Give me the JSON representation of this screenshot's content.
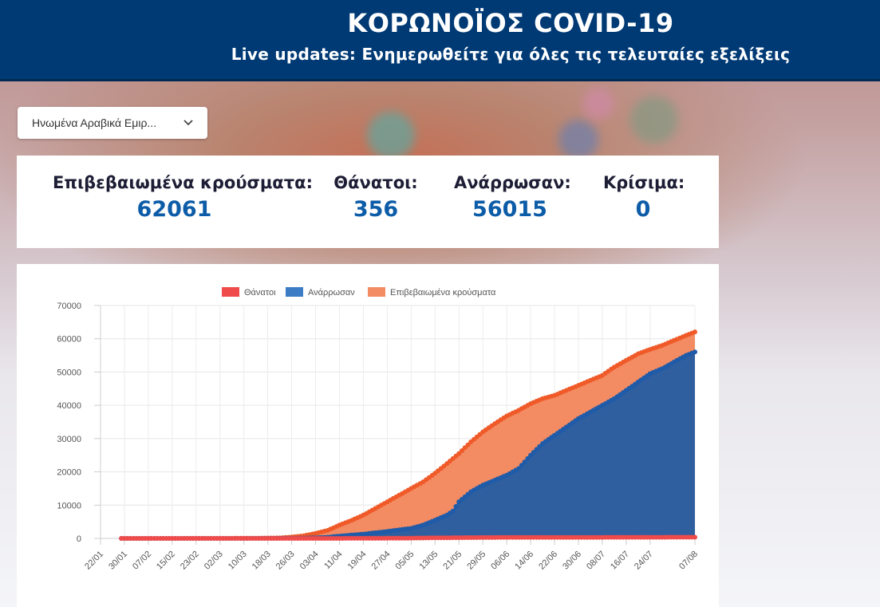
{
  "header": {
    "title": "ΚΟΡΩΝΟΪΟΣ COVID-19",
    "subtitle": "Live updates: Ενημερωθείτε για όλες τις τελευταίες εξελίξεις"
  },
  "country_select": {
    "value": "Ηνωμένα Αραβικά Εμιρ...",
    "icon": "chevron-down-icon"
  },
  "stats": {
    "confirmed_label": "Επιβεβαιωμένα κρούσματα:",
    "confirmed_value": "62061",
    "deaths_label": "Θάνατοι:",
    "deaths_value": "356",
    "recovered_label": "Ανάρρωσαν:",
    "recovered_value": "56015",
    "critical_label": "Κρίσιμα:",
    "critical_value": "0"
  },
  "colors": {
    "header_bg": "#003a75",
    "stat_value": "#0d5ca8",
    "deaths": "#f04b4b",
    "recovered": "#3c7cc4",
    "recovered_line": "#1f5ba8",
    "confirmed": "#f38b63",
    "confirmed_line": "#f05a28"
  },
  "chart_data": {
    "type": "area",
    "title": "",
    "xlabel": "",
    "ylabel": "",
    "ylim": [
      0,
      70000
    ],
    "yticks": [
      "70000",
      "60000",
      "50000",
      "40000",
      "30000",
      "20000",
      "10000",
      "0"
    ],
    "x_tick_labels": [
      "22/01",
      "30/01",
      "07/02",
      "15/02",
      "23/02",
      "02/03",
      "10/03",
      "18/03",
      "26/03",
      "03/04",
      "11/04",
      "19/04",
      "27/04",
      "05/05",
      "13/05",
      "21/05",
      "29/05",
      "06/06",
      "14/06",
      "22/06",
      "30/06",
      "08/07",
      "16/07",
      "24/07",
      "07/08"
    ],
    "legend": [
      "Θάνατοι",
      "Ανάρρωσαν",
      "Επιβεβαιωμένα κρούσματα"
    ],
    "legend_position": "top",
    "start_date": "22/01",
    "end_date": "07/08",
    "data_start_day": 7,
    "days_total": 199,
    "series": [
      {
        "name": "Επιβεβαιωμένα κρούσματα",
        "keypoints": [
          [
            7,
            4
          ],
          [
            30,
            13
          ],
          [
            50,
            45
          ],
          [
            60,
            153
          ],
          [
            64,
            400
          ],
          [
            68,
            800
          ],
          [
            72,
            1500
          ],
          [
            76,
            2400
          ],
          [
            80,
            4000
          ],
          [
            84,
            5400
          ],
          [
            88,
            7000
          ],
          [
            92,
            9000
          ],
          [
            96,
            11000
          ],
          [
            100,
            13000
          ],
          [
            104,
            15000
          ],
          [
            108,
            17000
          ],
          [
            112,
            19600
          ],
          [
            116,
            22500
          ],
          [
            120,
            25500
          ],
          [
            124,
            29000
          ],
          [
            128,
            32000
          ],
          [
            132,
            34500
          ],
          [
            136,
            36800
          ],
          [
            140,
            38500
          ],
          [
            144,
            40500
          ],
          [
            148,
            42000
          ],
          [
            152,
            43000
          ],
          [
            156,
            44500
          ],
          [
            160,
            46000
          ],
          [
            164,
            47500
          ],
          [
            168,
            49000
          ],
          [
            172,
            51500
          ],
          [
            176,
            53500
          ],
          [
            180,
            55500
          ],
          [
            184,
            56800
          ],
          [
            188,
            58000
          ],
          [
            192,
            59500
          ],
          [
            196,
            61000
          ],
          [
            199,
            62061
          ]
        ]
      },
      {
        "name": "Ανάρρωσαν",
        "keypoints": [
          [
            7,
            0
          ],
          [
            30,
            5
          ],
          [
            50,
            12
          ],
          [
            60,
            38
          ],
          [
            64,
            58
          ],
          [
            68,
            100
          ],
          [
            72,
            200
          ],
          [
            76,
            350
          ],
          [
            80,
            700
          ],
          [
            84,
            1000
          ],
          [
            88,
            1300
          ],
          [
            92,
            1700
          ],
          [
            96,
            2100
          ],
          [
            100,
            2600
          ],
          [
            104,
            3000
          ],
          [
            108,
            4000
          ],
          [
            112,
            5500
          ],
          [
            116,
            7000
          ],
          [
            118,
            8200
          ],
          [
            120,
            11000
          ],
          [
            124,
            14000
          ],
          [
            128,
            16000
          ],
          [
            132,
            17500
          ],
          [
            136,
            19000
          ],
          [
            140,
            21000
          ],
          [
            144,
            25000
          ],
          [
            148,
            28500
          ],
          [
            152,
            31000
          ],
          [
            156,
            33500
          ],
          [
            160,
            36000
          ],
          [
            164,
            38000
          ],
          [
            168,
            40000
          ],
          [
            172,
            42000
          ],
          [
            176,
            44500
          ],
          [
            180,
            47000
          ],
          [
            184,
            49500
          ],
          [
            188,
            51000
          ],
          [
            192,
            53000
          ],
          [
            196,
            55000
          ],
          [
            199,
            56015
          ]
        ]
      },
      {
        "name": "Θάνατοι",
        "keypoints": [
          [
            7,
            0
          ],
          [
            60,
            2
          ],
          [
            70,
            5
          ],
          [
            80,
            10
          ],
          [
            90,
            20
          ],
          [
            100,
            50
          ],
          [
            110,
            150
          ],
          [
            120,
            220
          ],
          [
            130,
            270
          ],
          [
            140,
            290
          ],
          [
            150,
            305
          ],
          [
            160,
            315
          ],
          [
            170,
            325
          ],
          [
            180,
            335
          ],
          [
            190,
            348
          ],
          [
            199,
            356
          ]
        ]
      }
    ]
  }
}
